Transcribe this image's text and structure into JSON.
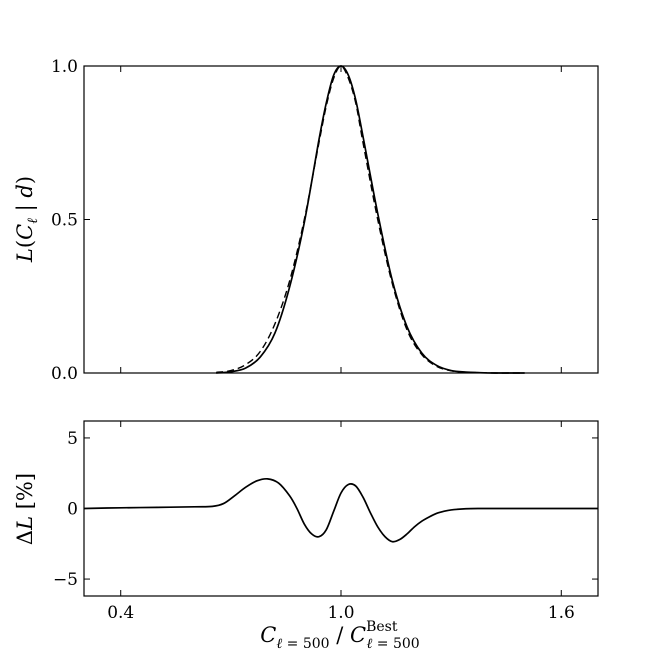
{
  "chart_data": [
    {
      "type": "line",
      "panel": "top",
      "xlabel": "C_{ℓ = 500} / C_{ℓ = 500}^{Best}",
      "ylabel": "L(C_ℓ | d)",
      "xlim": [
        0.3,
        1.7
      ],
      "ylim": [
        0.0,
        1.0
      ],
      "xticks": [
        0.4,
        1.0,
        1.6
      ],
      "yticks": [
        0.0,
        0.5,
        1.0
      ],
      "xtick_labels": [
        "0.4",
        "1.0",
        "1.6"
      ],
      "ytick_labels": [
        "0.0",
        "0.5",
        "1.0"
      ],
      "grid": false,
      "series": [
        {
          "style": "solid",
          "x": [
            0.66,
            0.7,
            0.74,
            0.78,
            0.82,
            0.86,
            0.9,
            0.94,
            0.96,
            0.98,
            1.0,
            1.02,
            1.04,
            1.06,
            1.1,
            1.14,
            1.18,
            1.22,
            1.26,
            1.3,
            1.34,
            1.38,
            1.42,
            1.46,
            1.5
          ],
          "y": [
            0.0,
            0.004,
            0.016,
            0.052,
            0.13,
            0.28,
            0.49,
            0.76,
            0.88,
            0.97,
            1.0,
            0.97,
            0.89,
            0.77,
            0.52,
            0.3,
            0.15,
            0.065,
            0.025,
            0.008,
            0.003,
            0.001,
            0.0,
            0.0,
            0.0
          ]
        },
        {
          "style": "dashed",
          "x": [
            0.66,
            0.7,
            0.74,
            0.78,
            0.82,
            0.86,
            0.9,
            0.94,
            0.96,
            0.98,
            1.0,
            1.02,
            1.04,
            1.06,
            1.1,
            1.14,
            1.18,
            1.22,
            1.26,
            1.3,
            1.34,
            1.38,
            1.42,
            1.46,
            1.5
          ],
          "y": [
            0.002,
            0.008,
            0.027,
            0.07,
            0.16,
            0.3,
            0.5,
            0.75,
            0.87,
            0.96,
            1.0,
            0.96,
            0.88,
            0.75,
            0.5,
            0.29,
            0.14,
            0.06,
            0.022,
            0.007,
            0.002,
            0.001,
            0.0,
            0.0,
            0.0
          ]
        }
      ]
    },
    {
      "type": "line",
      "panel": "bottom",
      "xlabel": "C_{ℓ = 500} / C_{ℓ = 500}^{Best}",
      "ylabel": "ΔL [%]",
      "xlim": [
        0.3,
        1.7
      ],
      "ylim": [
        -6.2,
        6.2
      ],
      "xticks": [
        0.4,
        1.0,
        1.6
      ],
      "yticks": [
        -5,
        0,
        5
      ],
      "xtick_labels": [
        "0.4",
        "1.0",
        "1.6"
      ],
      "ytick_labels": [
        "−5",
        "0",
        "5"
      ],
      "grid": false,
      "series": [
        {
          "style": "solid",
          "x": [
            0.3,
            0.4,
            0.5,
            0.6,
            0.65,
            0.68,
            0.71,
            0.74,
            0.77,
            0.8,
            0.83,
            0.86,
            0.88,
            0.9,
            0.92,
            0.94,
            0.96,
            0.98,
            1.0,
            1.02,
            1.04,
            1.06,
            1.08,
            1.1,
            1.12,
            1.14,
            1.16,
            1.18,
            1.2,
            1.22,
            1.24,
            1.26,
            1.28,
            1.3,
            1.34,
            1.38,
            1.42,
            1.46,
            1.5,
            1.6,
            1.7
          ],
          "y": [
            0.0,
            0.05,
            0.08,
            0.12,
            0.15,
            0.35,
            0.9,
            1.5,
            1.95,
            2.1,
            1.8,
            0.9,
            0.0,
            -1.1,
            -1.8,
            -2.0,
            -1.5,
            -0.2,
            1.1,
            1.7,
            1.6,
            0.8,
            -0.3,
            -1.3,
            -2.0,
            -2.35,
            -2.2,
            -1.8,
            -1.3,
            -0.9,
            -0.6,
            -0.35,
            -0.2,
            -0.1,
            -0.02,
            0.0,
            0.0,
            0.0,
            0.0,
            0.0,
            0.0
          ]
        }
      ]
    }
  ]
}
